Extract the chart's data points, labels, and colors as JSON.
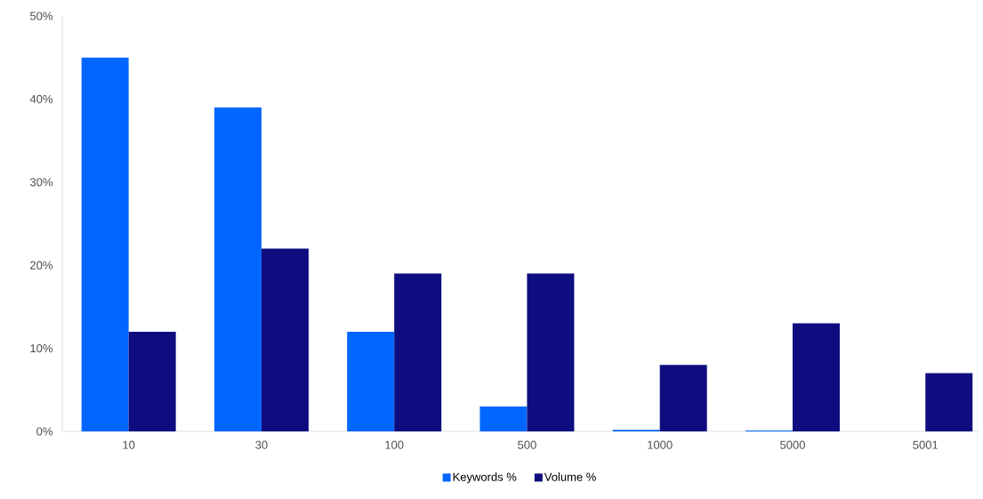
{
  "chart_data": {
    "type": "bar",
    "categories": [
      "10",
      "30",
      "100",
      "500",
      "1000",
      "5000",
      "5001"
    ],
    "series": [
      {
        "name": "Keywords %",
        "color": "#0066ff",
        "values": [
          45,
          39,
          12,
          3,
          0.2,
          0.1,
          0
        ]
      },
      {
        "name": "Volume %",
        "color": "#0d0d80",
        "values": [
          12,
          22,
          19,
          19,
          8,
          13,
          7
        ]
      }
    ],
    "ylim": [
      0,
      50
    ],
    "yticks": [
      {
        "value": 0,
        "label": "0%"
      },
      {
        "value": 10,
        "label": "10%"
      },
      {
        "value": 20,
        "label": "20%"
      },
      {
        "value": 30,
        "label": "30%"
      },
      {
        "value": 40,
        "label": "40%"
      },
      {
        "value": 50,
        "label": "50%"
      }
    ],
    "grid": false,
    "legend": "bottom"
  }
}
